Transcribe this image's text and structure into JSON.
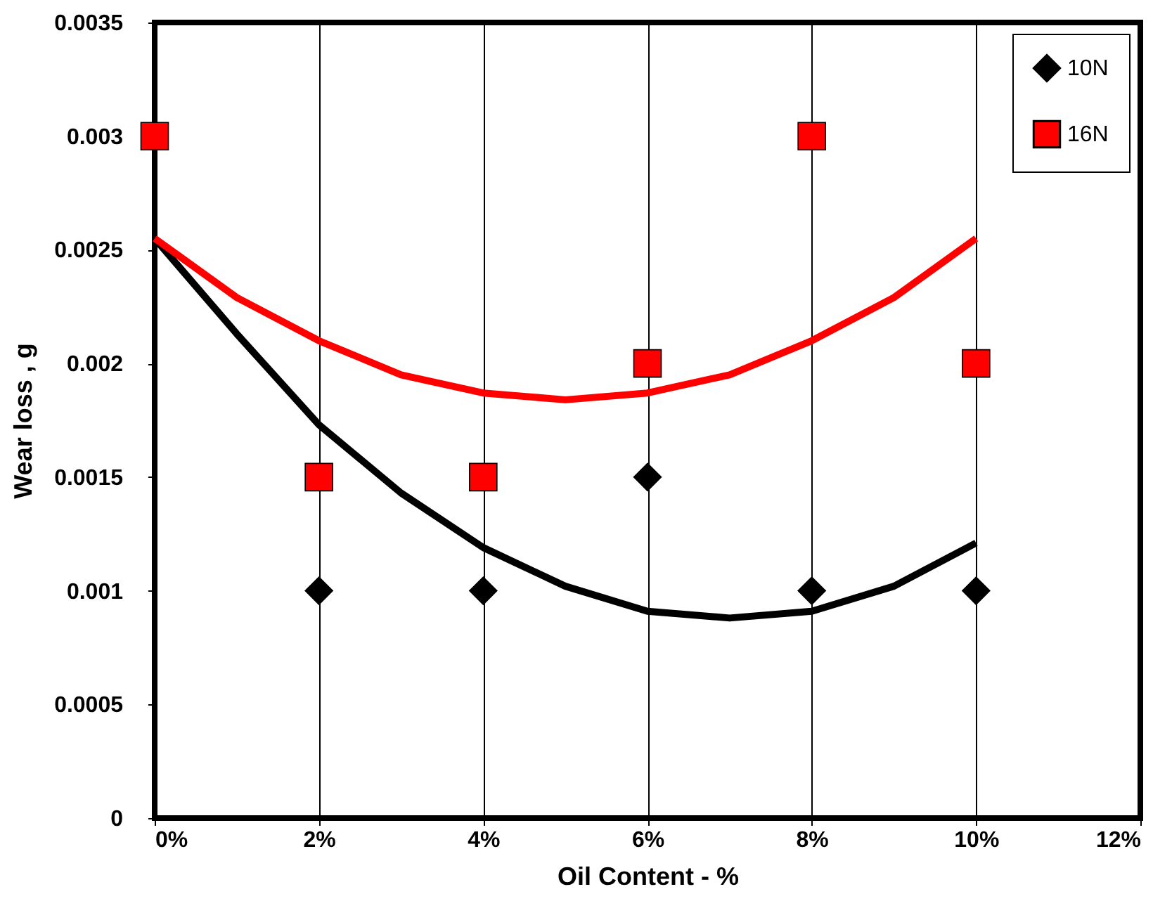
{
  "chart_data": {
    "type": "scatter",
    "xlabel": "Oil Content - %",
    "ylabel": "Wear loss , g",
    "xlim": [
      0,
      12
    ],
    "xticks": [
      {
        "value": 0,
        "label": "0%"
      },
      {
        "value": 2,
        "label": "2%"
      },
      {
        "value": 4,
        "label": "4%"
      },
      {
        "value": 6,
        "label": "6%"
      },
      {
        "value": 8,
        "label": "8%"
      },
      {
        "value": 10,
        "label": "10%"
      },
      {
        "value": 12,
        "label": "12%"
      }
    ],
    "ylim": [
      0,
      0.0035
    ],
    "yticks": [
      0,
      0.0005,
      0.001,
      0.0015,
      0.002,
      0.0025,
      0.003,
      0.0035
    ],
    "grid": "x",
    "legend": "top right",
    "series": [
      {
        "name": "10N",
        "marker": "diamond",
        "color": "#000000",
        "x": [
          2,
          4,
          6,
          8,
          10
        ],
        "values": [
          0.001,
          0.001,
          0.0015,
          0.001,
          0.001
        ]
      },
      {
        "name": "16N",
        "marker": "square",
        "color": "#ff0000",
        "x": [
          0,
          2,
          4,
          6,
          8,
          10
        ],
        "values": [
          0.003,
          0.0015,
          0.0015,
          0.002,
          0.003,
          0.002
        ]
      },
      {
        "type": "line",
        "color": "#000000",
        "x": [
          0,
          1,
          2,
          3,
          4,
          5,
          6,
          7,
          8,
          9,
          10
        ],
        "values": [
          0.00255,
          0.00213,
          0.00173,
          0.00143,
          0.00119,
          0.00102,
          0.00091,
          0.00088,
          0.00091,
          0.00102,
          0.00121
        ]
      },
      {
        "type": "line",
        "color": "#ff0000",
        "x": [
          0,
          1,
          2,
          3,
          4,
          5,
          6,
          7,
          8,
          9,
          10
        ],
        "values": [
          0.00255,
          0.00229,
          0.0021,
          0.00195,
          0.00187,
          0.00184,
          0.00187,
          0.00195,
          0.0021,
          0.00229,
          0.00255
        ]
      }
    ]
  }
}
